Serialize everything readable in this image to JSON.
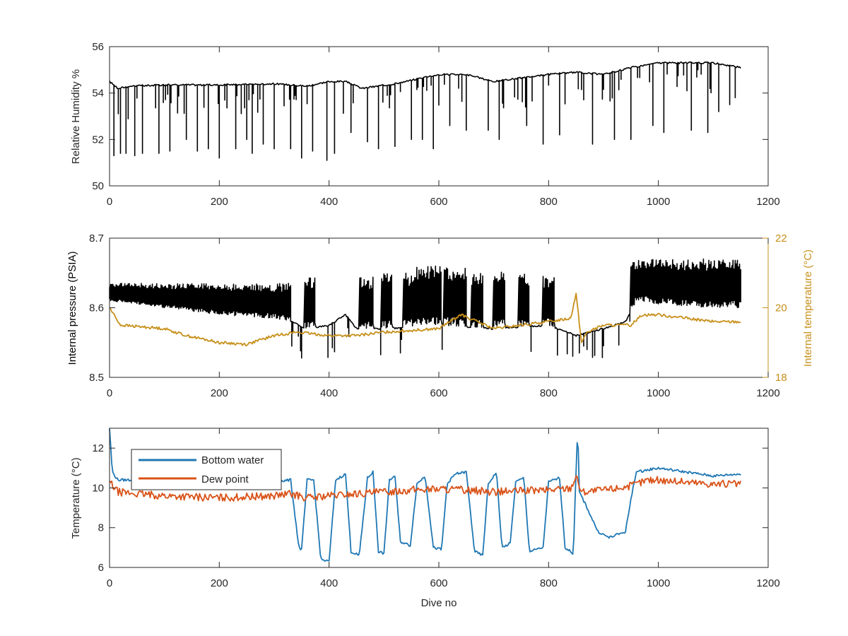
{
  "chart_data": [
    {
      "type": "line",
      "panel": "top",
      "ylabel": "Relative Humidity %",
      "xlim": [
        0,
        1200
      ],
      "ylim": [
        50,
        56
      ],
      "xticks": [
        0,
        200,
        400,
        600,
        800,
        1000,
        1200
      ],
      "yticks": [
        50,
        52,
        54,
        56
      ],
      "grid": false,
      "series": [
        {
          "color": "#000000",
          "baseline": [
            [
              0,
              54.5
            ],
            [
              15,
              54.2
            ],
            [
              40,
              54.3
            ],
            [
              100,
              54.35
            ],
            [
              200,
              54.35
            ],
            [
              300,
              54.4
            ],
            [
              360,
              54.3
            ],
            [
              400,
              54.5
            ],
            [
              430,
              54.5
            ],
            [
              460,
              54.2
            ],
            [
              520,
              54.4
            ],
            [
              600,
              54.8
            ],
            [
              650,
              54.8
            ],
            [
              700,
              54.5
            ],
            [
              800,
              54.8
            ],
            [
              850,
              54.9
            ],
            [
              900,
              54.8
            ],
            [
              950,
              55.1
            ],
            [
              1000,
              55.3
            ],
            [
              1100,
              55.3
            ],
            [
              1150,
              55.1
            ]
          ],
          "dips": [
            [
              8,
              51.3
            ],
            [
              20,
              51.4
            ],
            [
              30,
              51.4
            ],
            [
              45,
              51.3
            ],
            [
              60,
              51.4
            ],
            [
              90,
              51.4
            ],
            [
              110,
              51.5
            ],
            [
              140,
              52.0
            ],
            [
              160,
              51.5
            ],
            [
              180,
              51.6
            ],
            [
              200,
              51.2
            ],
            [
              230,
              51.6
            ],
            [
              250,
              52.0
            ],
            [
              260,
              51.4
            ],
            [
              280,
              51.8
            ],
            [
              300,
              51.6
            ],
            [
              330,
              51.6
            ],
            [
              350,
              51.2
            ],
            [
              370,
              51.5
            ],
            [
              395,
              51.1
            ],
            [
              410,
              51.4
            ],
            [
              440,
              52.3
            ],
            [
              470,
              51.9
            ],
            [
              490,
              51.6
            ],
            [
              520,
              51.7
            ],
            [
              550,
              52.0
            ],
            [
              570,
              52.0
            ],
            [
              590,
              51.6
            ],
            [
              620,
              52.6
            ],
            [
              650,
              52.4
            ],
            [
              690,
              52.4
            ],
            [
              710,
              52.0
            ],
            [
              760,
              52.6
            ],
            [
              790,
              51.8
            ],
            [
              820,
              52.2
            ],
            [
              880,
              51.8
            ],
            [
              920,
              52.0
            ],
            [
              950,
              52.0
            ],
            [
              990,
              52.6
            ],
            [
              1010,
              52.3
            ],
            [
              1060,
              52.4
            ],
            [
              1090,
              52.3
            ],
            [
              1110,
              53.2
            ],
            [
              1130,
              53.5
            ],
            [
              1140,
              53.8
            ]
          ]
        }
      ]
    },
    {
      "type": "line",
      "panel": "middle",
      "ylabel": "Internal pressure (PSIA)",
      "y2label": "Internal temperature (°C)",
      "xlim": [
        0,
        1200
      ],
      "ylim": [
        8.5,
        8.7
      ],
      "y2lim": [
        18,
        22
      ],
      "xticks": [
        0,
        200,
        400,
        600,
        800,
        1000,
        1200
      ],
      "yticks": [
        8.5,
        8.6,
        8.7
      ],
      "y2ticks": [
        18,
        20,
        22
      ],
      "grid": false,
      "series": [
        {
          "axis": "left",
          "color": "#000000",
          "baseline": [
            [
              0,
              8.61
            ],
            [
              100,
              8.6
            ],
            [
              200,
              8.59
            ],
            [
              300,
              8.585
            ],
            [
              330,
              8.58
            ],
            [
              360,
              8.57
            ],
            [
              400,
              8.575
            ],
            [
              430,
              8.59
            ],
            [
              450,
              8.57
            ],
            [
              500,
              8.57
            ],
            [
              600,
              8.575
            ],
            [
              700,
              8.57
            ],
            [
              800,
              8.575
            ],
            [
              850,
              8.56
            ],
            [
              900,
              8.57
            ],
            [
              940,
              8.58
            ],
            [
              960,
              8.61
            ],
            [
              1000,
              8.605
            ],
            [
              1100,
              8.6
            ],
            [
              1150,
              8.6
            ]
          ],
          "bursts": [
            [
              0,
              330,
              8.635
            ],
            [
              355,
              375,
              8.645
            ],
            [
              455,
              480,
              8.645
            ],
            [
              495,
              515,
              8.65
            ],
            [
              535,
              560,
              8.65
            ],
            [
              560,
              605,
              8.66
            ],
            [
              610,
              650,
              8.66
            ],
            [
              660,
              680,
              8.65
            ],
            [
              700,
              720,
              8.655
            ],
            [
              745,
              765,
              8.65
            ],
            [
              790,
              810,
              8.645
            ],
            [
              950,
              1150,
              8.67
            ]
          ],
          "dips": [
            [
              530,
              8.535
            ],
            [
              545,
              8.535
            ],
            [
              665,
              8.535
            ],
            [
              855,
              8.535
            ],
            [
              870,
              8.54
            ]
          ]
        },
        {
          "axis": "right",
          "color": "#C7901B",
          "points": [
            [
              0,
              20.0
            ],
            [
              20,
              19.5
            ],
            [
              100,
              19.4
            ],
            [
              140,
              19.2
            ],
            [
              200,
              19.0
            ],
            [
              250,
              18.95
            ],
            [
              300,
              19.2
            ],
            [
              340,
              19.3
            ],
            [
              400,
              19.2
            ],
            [
              450,
              19.2
            ],
            [
              500,
              19.3
            ],
            [
              600,
              19.4
            ],
            [
              640,
              19.8
            ],
            [
              700,
              19.4
            ],
            [
              800,
              19.6
            ],
            [
              840,
              19.7
            ],
            [
              850,
              20.4
            ],
            [
              860,
              19.0
            ],
            [
              870,
              19.3
            ],
            [
              900,
              19.5
            ],
            [
              950,
              19.5
            ],
            [
              970,
              19.8
            ],
            [
              1000,
              19.8
            ],
            [
              1050,
              19.7
            ],
            [
              1100,
              19.6
            ],
            [
              1150,
              19.6
            ]
          ]
        }
      ]
    },
    {
      "type": "line",
      "panel": "bottom",
      "xlabel": "Dive no",
      "ylabel": "Temperature (°C)",
      "xlim": [
        0,
        1200
      ],
      "ylim": [
        6,
        13
      ],
      "xticks": [
        0,
        200,
        400,
        600,
        800,
        1000,
        1200
      ],
      "yticks": [
        6,
        8,
        10,
        12
      ],
      "grid": false,
      "legend_position": "top-left",
      "series": [
        {
          "name": "Bottom water",
          "color": "#1F77B4",
          "points": [
            [
              0,
              13.0
            ],
            [
              5,
              10.8
            ],
            [
              15,
              10.4
            ],
            [
              60,
              10.4
            ],
            [
              100,
              10.5
            ],
            [
              200,
              10.4
            ],
            [
              300,
              10.3
            ],
            [
              330,
              10.4
            ],
            [
              345,
              7.0
            ],
            [
              350,
              6.9
            ],
            [
              360,
              10.4
            ],
            [
              372,
              10.4
            ],
            [
              385,
              6.4
            ],
            [
              400,
              6.3
            ],
            [
              412,
              10.4
            ],
            [
              430,
              10.7
            ],
            [
              440,
              6.8
            ],
            [
              455,
              6.6
            ],
            [
              470,
              10.5
            ],
            [
              480,
              10.8
            ],
            [
              490,
              6.8
            ],
            [
              500,
              6.7
            ],
            [
              510,
              10.4
            ],
            [
              520,
              10.6
            ],
            [
              530,
              7.3
            ],
            [
              548,
              7.1
            ],
            [
              560,
              10.2
            ],
            [
              575,
              10.6
            ],
            [
              590,
              7.0
            ],
            [
              605,
              6.9
            ],
            [
              615,
              10.2
            ],
            [
              630,
              10.7
            ],
            [
              650,
              10.8
            ],
            [
              665,
              6.8
            ],
            [
              680,
              6.6
            ],
            [
              690,
              10.2
            ],
            [
              705,
              10.8
            ],
            [
              715,
              7.0
            ],
            [
              730,
              7.2
            ],
            [
              740,
              10.3
            ],
            [
              755,
              10.5
            ],
            [
              765,
              6.8
            ],
            [
              790,
              7.0
            ],
            [
              800,
              10.3
            ],
            [
              820,
              10.5
            ],
            [
              830,
              7.0
            ],
            [
              845,
              6.7
            ],
            [
              850,
              10.8
            ],
            [
              853,
              13.0
            ],
            [
              856,
              9.8
            ],
            [
              870,
              9.0
            ],
            [
              890,
              7.8
            ],
            [
              910,
              7.5
            ],
            [
              940,
              7.8
            ],
            [
              955,
              10.2
            ],
            [
              960,
              10.8
            ],
            [
              1000,
              11.0
            ],
            [
              1050,
              10.8
            ],
            [
              1100,
              10.6
            ],
            [
              1150,
              10.7
            ]
          ]
        },
        {
          "name": "Dew point",
          "color": "#D95319",
          "points": [
            [
              0,
              10.3
            ],
            [
              15,
              9.8
            ],
            [
              50,
              9.7
            ],
            [
              100,
              9.6
            ],
            [
              200,
              9.5
            ],
            [
              300,
              9.6
            ],
            [
              330,
              9.7
            ],
            [
              360,
              9.5
            ],
            [
              400,
              9.6
            ],
            [
              450,
              9.7
            ],
            [
              500,
              9.8
            ],
            [
              550,
              9.9
            ],
            [
              600,
              9.95
            ],
            [
              650,
              9.9
            ],
            [
              700,
              9.8
            ],
            [
              750,
              9.85
            ],
            [
              800,
              9.9
            ],
            [
              840,
              10.0
            ],
            [
              850,
              10.6
            ],
            [
              860,
              9.8
            ],
            [
              900,
              9.9
            ],
            [
              950,
              10.1
            ],
            [
              980,
              10.4
            ],
            [
              1000,
              10.4
            ],
            [
              1050,
              10.3
            ],
            [
              1100,
              10.2
            ],
            [
              1150,
              10.2
            ]
          ]
        }
      ]
    }
  ]
}
